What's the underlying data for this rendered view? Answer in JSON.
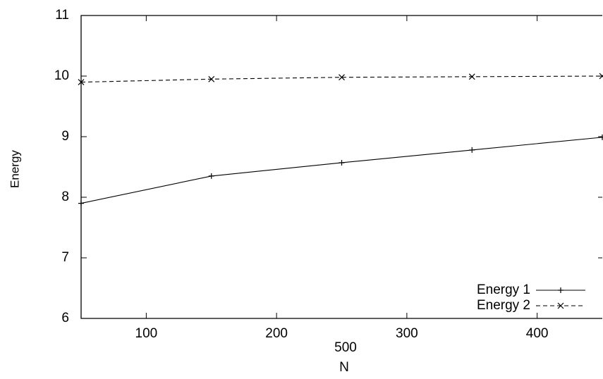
{
  "chart_data": {
    "type": "line",
    "x_label": "N",
    "y_label": "Energy",
    "x": [
      50,
      150,
      250,
      350,
      450
    ],
    "series": [
      {
        "name": "Energy 1",
        "color": "#000000",
        "dash": false,
        "marker": "plus",
        "values": [
          7.9,
          8.35,
          8.57,
          8.78,
          8.99
        ]
      },
      {
        "name": "Energy 2",
        "color": "#000000",
        "dash": true,
        "marker": "cross",
        "values": [
          9.9,
          9.95,
          9.98,
          9.99,
          10.0
        ]
      }
    ],
    "xlim": [
      50,
      450
    ],
    "xticks": [
      100,
      200,
      300,
      400
    ],
    "annotations": [
      "500"
    ],
    "ylim": [
      6,
      11
    ],
    "yticks": [
      6,
      7,
      8,
      9,
      10,
      11
    ],
    "grid": false,
    "legend": "lower right"
  }
}
